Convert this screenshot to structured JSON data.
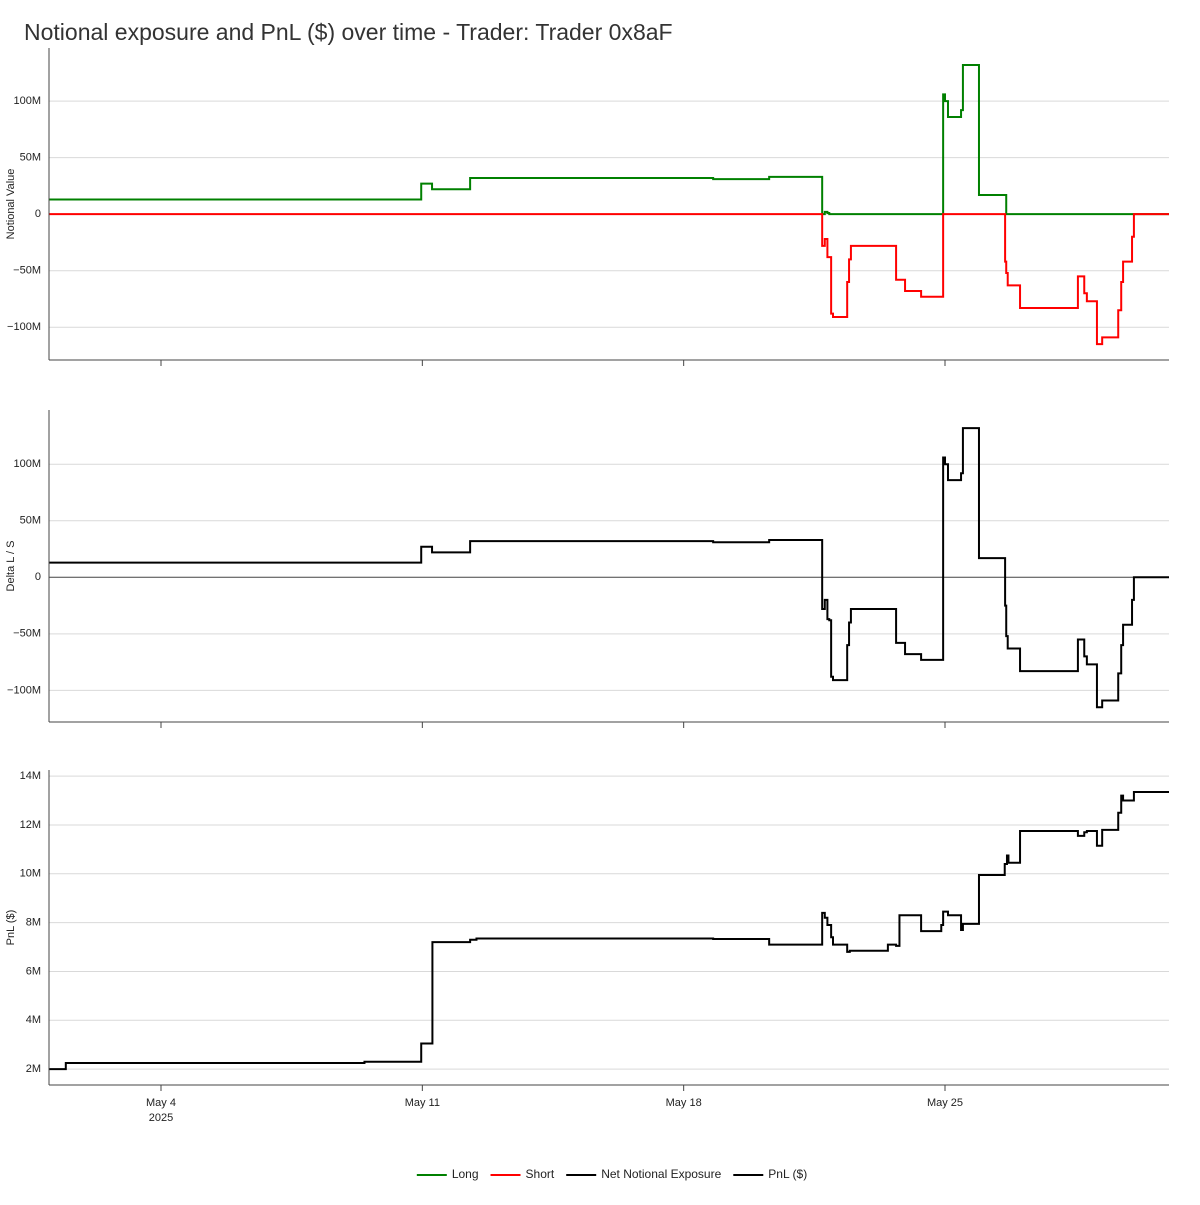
{
  "chart_data": [
    {
      "type": "line",
      "title": "Notional exposure and PnL ($) over time - Trader: Trader 0x8aF",
      "y_label": "Notional Value",
      "line_shape": "hv",
      "grid": true,
      "x": [
        1,
        10.97,
        11.26,
        12.28,
        18.79,
        20.29,
        21.71,
        21.78,
        21.85,
        21.9,
        21.95,
        22.0,
        22.38,
        22.43,
        22.48,
        23.69,
        23.93,
        24.36,
        24.95,
        25.0,
        25.08,
        25.43,
        25.48,
        25.91,
        26.61,
        26.64,
        26.68,
        27.01,
        28.56,
        28.73,
        28.8,
        29.07,
        29.21,
        29.64,
        29.72,
        29.77,
        30.01,
        30.06,
        31
      ],
      "series": [
        {
          "name": "Long",
          "color": "#008000",
          "values": [
            13,
            27,
            22,
            32,
            31,
            33,
            0,
            2,
            1,
            0,
            0,
            0,
            0,
            0,
            0,
            0,
            0,
            0,
            106,
            100,
            86,
            92,
            132,
            17,
            17,
            0,
            0,
            0,
            0,
            0,
            0,
            0,
            0,
            0,
            0,
            0,
            0,
            0,
            0
          ]
        },
        {
          "name": "Short",
          "color": "#ff0000",
          "values": [
            0,
            0,
            0,
            0,
            0,
            0,
            -28,
            -22,
            -38,
            -38,
            -88,
            -91,
            -60,
            -40,
            -28,
            -58,
            -68,
            -73,
            0,
            0,
            0,
            0,
            0,
            0,
            -42,
            -52,
            -63,
            -83,
            -55,
            -70,
            -77,
            -115,
            -109,
            -85,
            -60,
            -42,
            -20,
            0,
            0
          ]
        }
      ],
      "xlim": [
        1,
        31
      ],
      "ylim": [
        -129,
        147
      ],
      "yticks": [
        {
          "value": -100,
          "label": "−100M"
        },
        {
          "value": -50,
          "label": "−50M"
        },
        0,
        {
          "value": 50,
          "label": "50M"
        },
        {
          "value": 100,
          "label": "100M"
        }
      ]
    },
    {
      "type": "line",
      "y_label": "Delta L / S",
      "line_shape": "hv",
      "grid": true,
      "zeroline": true,
      "x": [
        1,
        10.97,
        11.26,
        12.28,
        18.79,
        20.29,
        21.71,
        21.78,
        21.85,
        21.9,
        21.95,
        22.0,
        22.38,
        22.43,
        22.48,
        23.69,
        23.93,
        24.36,
        24.95,
        25.0,
        25.08,
        25.43,
        25.48,
        25.91,
        26.61,
        26.64,
        26.68,
        27.01,
        28.56,
        28.73,
        28.8,
        29.07,
        29.21,
        29.64,
        29.72,
        29.77,
        30.01,
        30.06,
        31
      ],
      "series": [
        {
          "name": "Net Notional Exposure",
          "color": "#000000",
          "values": [
            13,
            27,
            22,
            32,
            31,
            33,
            -28,
            -20,
            -37,
            -38,
            -88,
            -91,
            -60,
            -40,
            -28,
            -58,
            -68,
            -73,
            106,
            100,
            86,
            92,
            132,
            17,
            -25,
            -52,
            -63,
            -83,
            -55,
            -70,
            -77,
            -115,
            -109,
            -85,
            -60,
            -42,
            -20,
            0,
            0
          ]
        }
      ],
      "xlim": [
        1,
        31
      ],
      "ylim": [
        -128,
        148
      ],
      "yticks": [
        {
          "value": -100,
          "label": "−100M"
        },
        {
          "value": -50,
          "label": "−50M"
        },
        0,
        {
          "value": 50,
          "label": "50M"
        },
        {
          "value": 100,
          "label": "100M"
        }
      ]
    },
    {
      "type": "line",
      "y_label": "PnL ($)",
      "line_shape": "hv",
      "grid": true,
      "x": [
        1,
        1.45,
        9.45,
        10.97,
        11.27,
        12.28,
        12.45,
        18.79,
        20.29,
        21.71,
        21.78,
        21.85,
        21.95,
        22.0,
        22.38,
        22.45,
        23.47,
        23.69,
        23.78,
        24.36,
        24.9,
        24.95,
        25.08,
        25.43,
        25.48,
        25.91,
        26.6,
        26.66,
        26.7,
        27.01,
        28.56,
        28.73,
        28.8,
        29.07,
        29.21,
        29.64,
        29.72,
        29.77,
        30.06,
        31
      ],
      "series": [
        {
          "name": "PnL ($)",
          "color": "#000000",
          "values": [
            2.0,
            2.25,
            2.3,
            3.05,
            7.2,
            7.3,
            7.35,
            7.33,
            7.1,
            8.4,
            8.2,
            7.9,
            7.4,
            7.1,
            6.8,
            6.85,
            7.1,
            7.05,
            8.3,
            7.65,
            7.9,
            8.45,
            8.3,
            7.7,
            7.95,
            9.95,
            10.4,
            10.75,
            10.45,
            11.75,
            11.55,
            11.7,
            11.75,
            11.15,
            11.8,
            12.5,
            13.2,
            13.0,
            13.35,
            13.35
          ]
        }
      ],
      "xlim": [
        1,
        31
      ],
      "ylim": [
        1.35,
        14.25
      ],
      "yticks": [
        {
          "value": 2,
          "label": "2M"
        },
        {
          "value": 4,
          "label": "4M"
        },
        {
          "value": 6,
          "label": "6M"
        },
        {
          "value": 8,
          "label": "8M"
        },
        {
          "value": 10,
          "label": "10M"
        },
        {
          "value": 12,
          "label": "12M"
        },
        {
          "value": 14,
          "label": "14M"
        }
      ],
      "xticks": [
        {
          "value": 4,
          "label": "May 4"
        },
        {
          "value": 11,
          "label": "May 11"
        },
        {
          "value": 18,
          "label": "May 18"
        },
        {
          "value": 25,
          "label": "May 25"
        }
      ],
      "x_year_label": "2025"
    }
  ]
}
